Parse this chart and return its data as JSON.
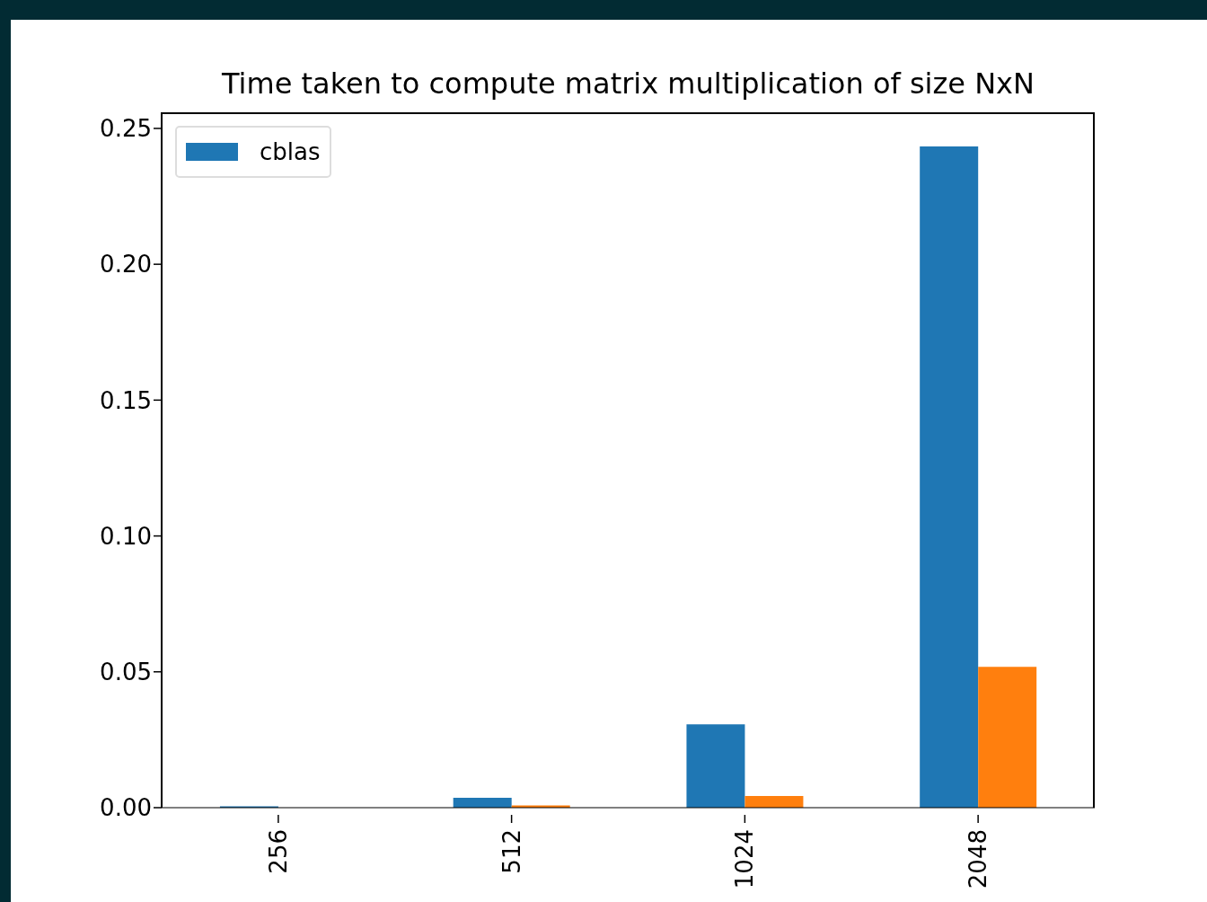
{
  "chart_data": {
    "type": "bar",
    "title": "Time taken to compute matrix multiplication of size NxN",
    "categories": [
      "256",
      "512",
      "1024",
      "2048"
    ],
    "series": [
      {
        "name": "cblas",
        "color": "#1f77b4",
        "values": [
          0.0005,
          0.0036,
          0.0307,
          0.2434
        ]
      },
      {
        "color": "#ff7f0e",
        "values": [
          null,
          0.0008,
          0.0043,
          0.0518
        ]
      }
    ],
    "ylim": [
      0,
      0.2556
    ],
    "yticks": [
      {
        "value": 0,
        "label": "0.00"
      },
      {
        "value": 0.05,
        "label": "0.05"
      },
      {
        "value": 0.1,
        "label": "0.10"
      },
      {
        "value": 0.15,
        "label": "0.15"
      },
      {
        "value": 0.2,
        "label": "0.20"
      },
      {
        "value": 0.25,
        "label": "0.25"
      }
    ],
    "grid": false,
    "legend": "top left"
  }
}
